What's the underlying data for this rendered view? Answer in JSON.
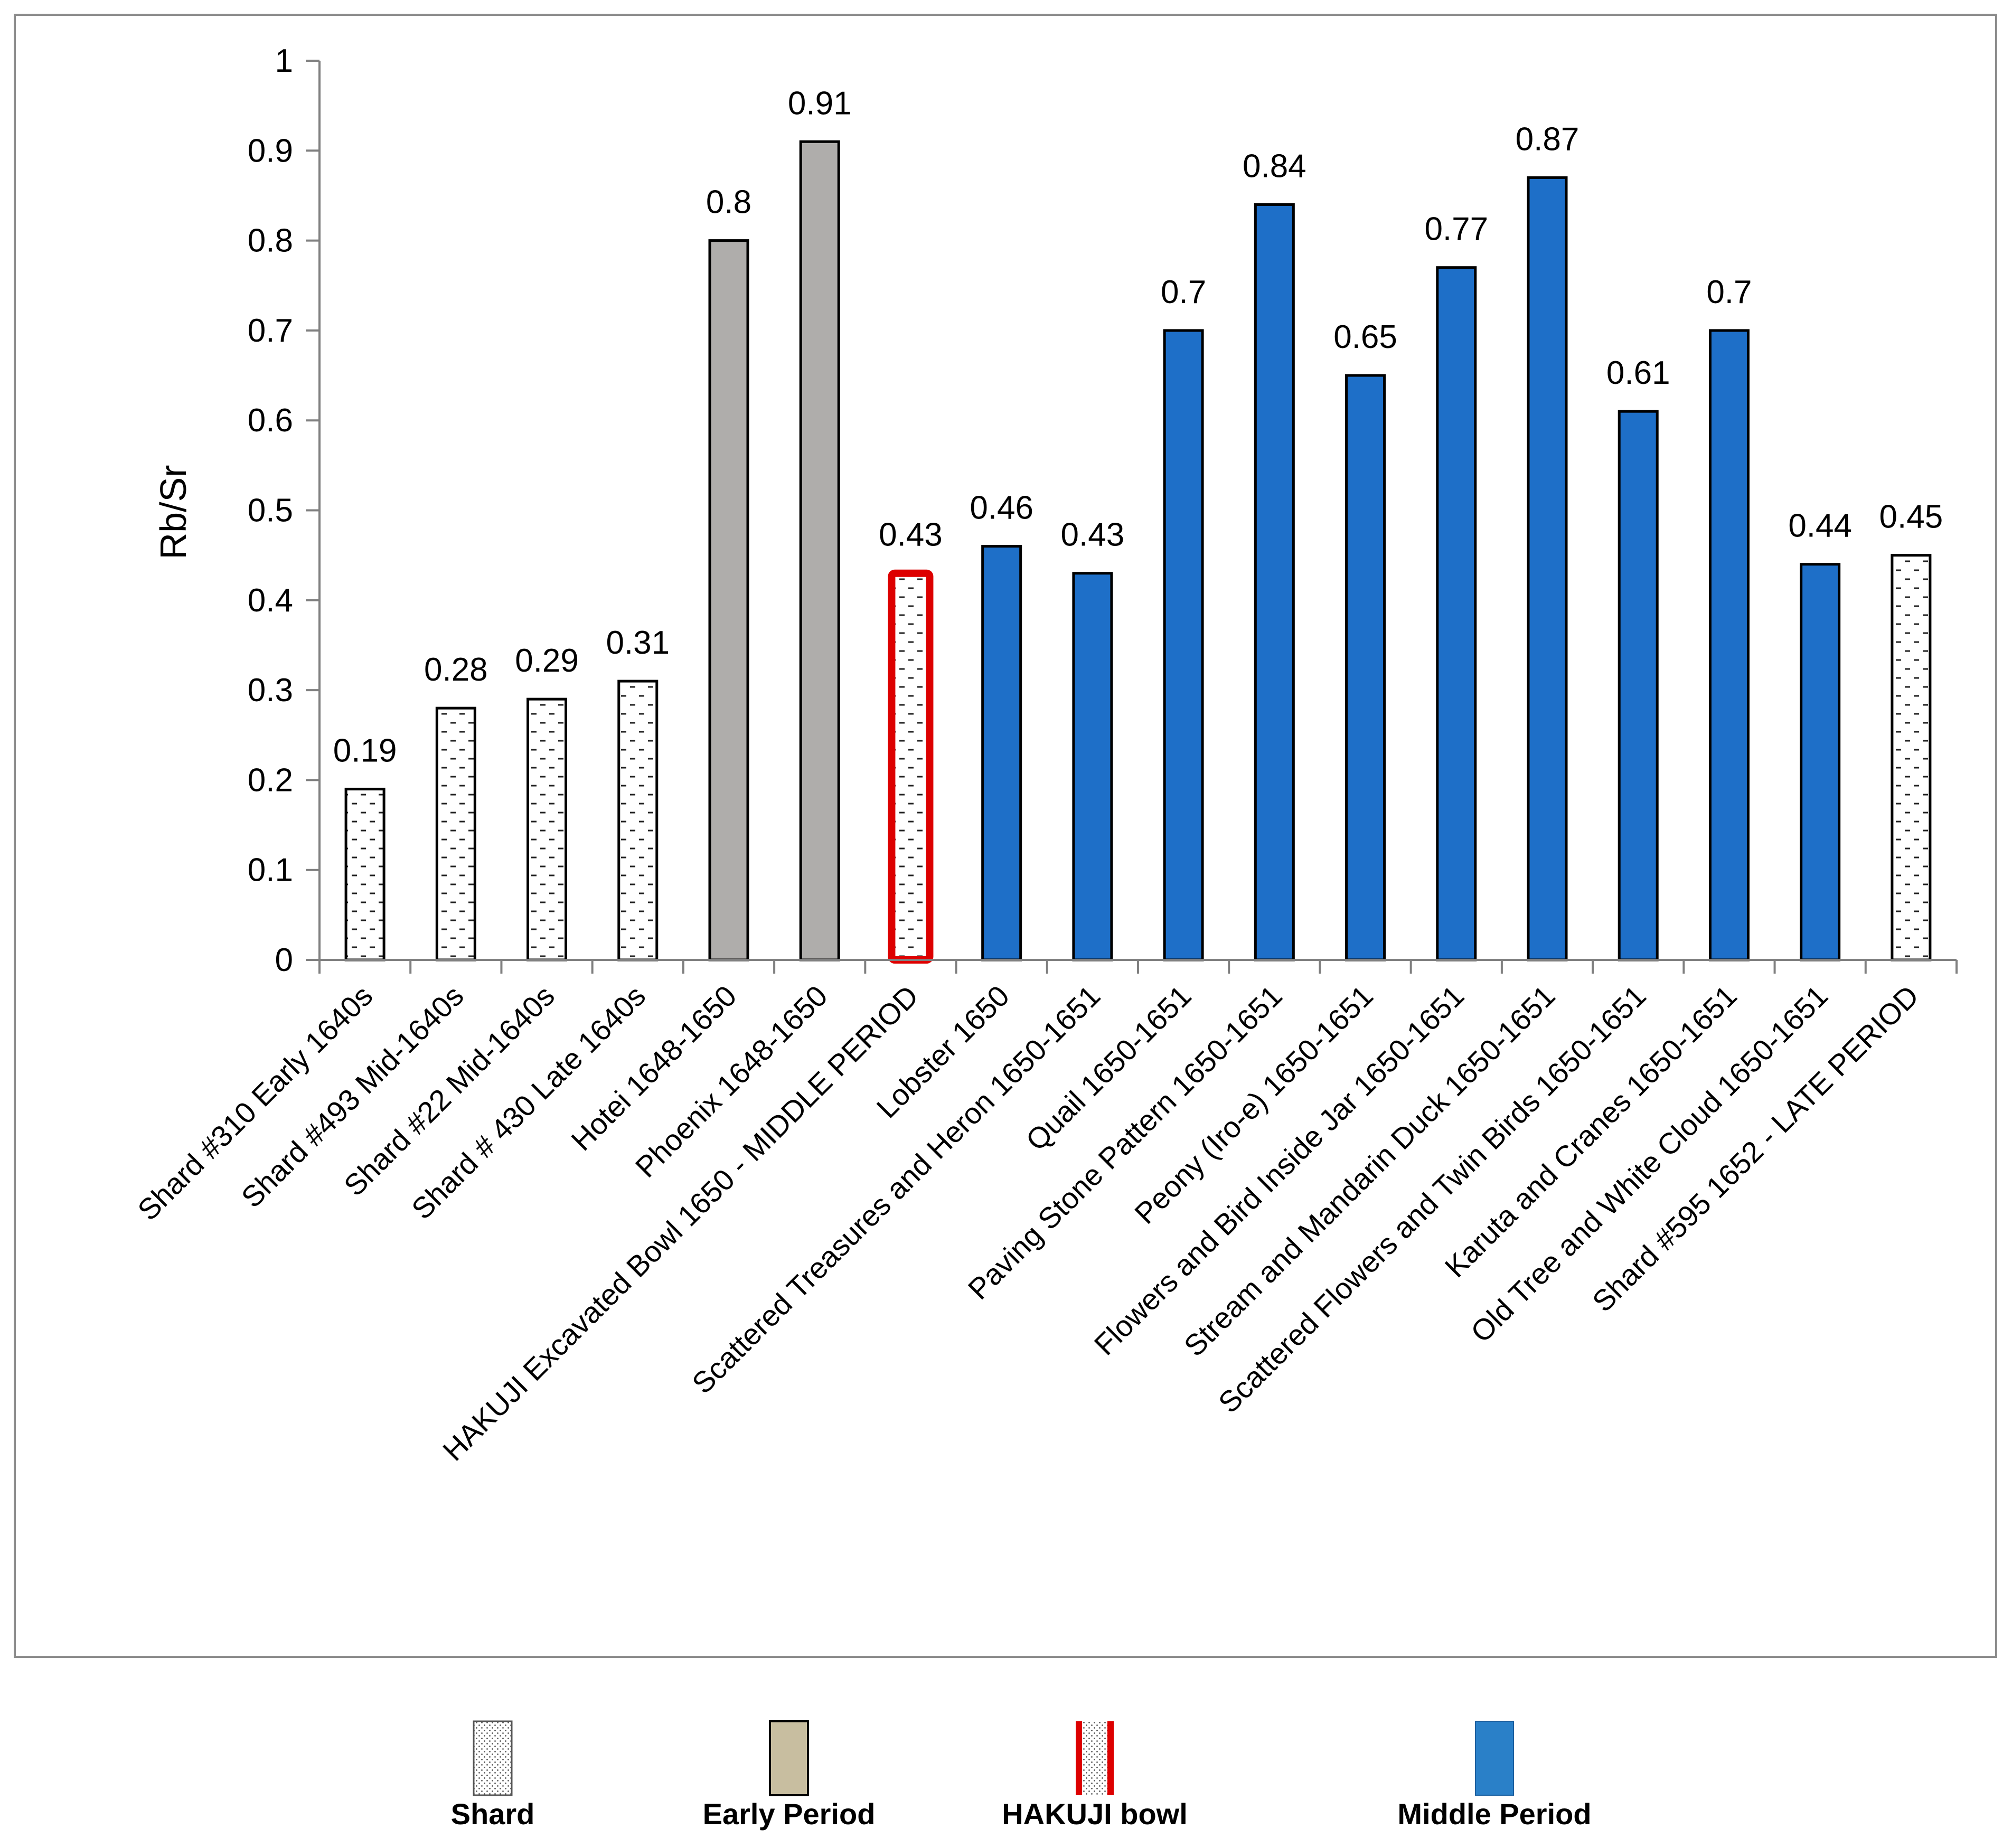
{
  "chart_data": {
    "type": "bar",
    "title": "",
    "xlabel": "",
    "ylabel": "Rb/Sr",
    "ylim": [
      0,
      1
    ],
    "yticks": [
      "0",
      "0.1",
      "0.2",
      "0.3",
      "0.4",
      "0.5",
      "0.6",
      "0.7",
      "0.8",
      "0.9",
      "1"
    ],
    "categories": [
      "Shard #310  Early 1640s",
      "Shard #493  Mid-1640s",
      "Shard #22  Mid-1640s",
      "Shard # 430 Late 1640s",
      "Hotei  1648-1650",
      "Phoenix  1648-1650",
      "HAKUJI Excavated Bowl 1650 - MIDDLE PERIOD",
      "Lobster 1650",
      "Scattered Treasures and Heron  1650-1651",
      "Quail  1650-1651",
      "Paving Stone Pattern  1650-1651",
      "Peony (Iro-e)  1650-1651",
      "Flowers and Bird Inside Jar  1650-1651",
      "Stream and Mandarin Duck  1650-1651",
      "Scattered Flowers and Twin Birds  1650-1651",
      "Karuta and Cranes  1650-1651",
      "Old Tree and White Cloud  1650-1651",
      "Shard #595  1652 - LATE PERIOD"
    ],
    "values": [
      0.19,
      0.28,
      0.29,
      0.31,
      0.8,
      0.91,
      0.43,
      0.46,
      0.43,
      0.7,
      0.84,
      0.65,
      0.77,
      0.87,
      0.61,
      0.7,
      0.44,
      0.45
    ],
    "value_labels": [
      "0.19",
      "0.28",
      "0.29",
      "0.31",
      "0.8",
      "0.91",
      "0.43",
      "0.46",
      "0.43",
      "0.7",
      "0.84",
      "0.65",
      "0.77",
      "0.87",
      "0.61",
      "0.7",
      "0.44",
      "0.45"
    ],
    "groups": [
      "shard",
      "shard",
      "shard",
      "shard",
      "early",
      "early",
      "hakuji",
      "middle",
      "middle",
      "middle",
      "middle",
      "middle",
      "middle",
      "middle",
      "middle",
      "middle",
      "middle",
      "shard"
    ],
    "legend": [
      {
        "key": "shard",
        "label": "Shard"
      },
      {
        "key": "early",
        "label": "Early Period"
      },
      {
        "key": "hakuji",
        "label": "HAKUJI bowl"
      },
      {
        "key": "middle",
        "label": "Middle Period"
      }
    ],
    "legend_position": "bottom",
    "colors": {
      "shard": "#ffffff",
      "early": "#afadab",
      "early_legend": "#c8bea0",
      "hakuji_border": "#dd0000",
      "middle": "#1e6fc8",
      "middle_legend": "#2a80c8",
      "axis": "#808080",
      "frame": "#8c8c8c"
    }
  }
}
